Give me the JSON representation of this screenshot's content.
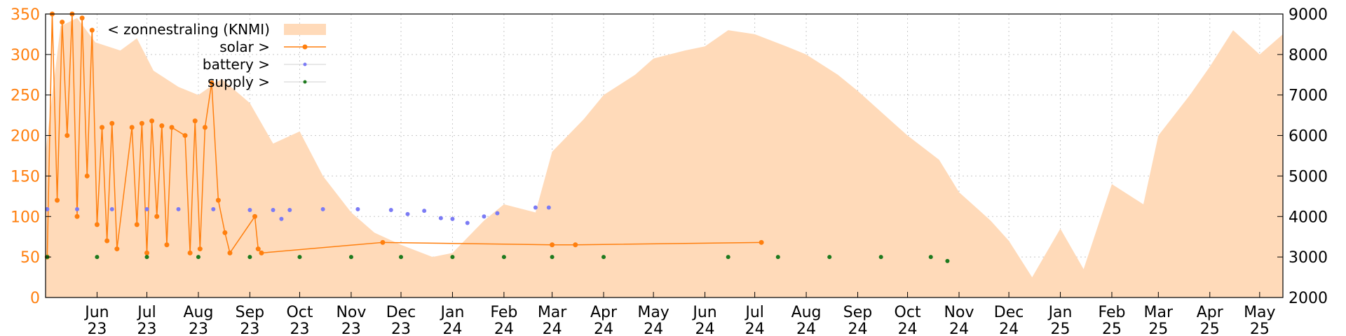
{
  "chart_data": {
    "type": "line",
    "title": "",
    "xlabel": "",
    "ylabel": "",
    "y_left": {
      "range": [
        0,
        350
      ],
      "ticks": [
        0,
        50,
        100,
        150,
        200,
        250,
        300,
        350
      ],
      "color": "#ff7f0e"
    },
    "y_right": {
      "range": [
        2000,
        9000
      ],
      "ticks": [
        2000,
        3000,
        4000,
        5000,
        6000,
        7000,
        8000,
        9000
      ],
      "color": "#000000"
    },
    "x_range": [
      "2023-05-01",
      "2025-05-15"
    ],
    "x_ticks": [
      {
        "label": [
          "Jun",
          "23"
        ],
        "date": "2023-06-01"
      },
      {
        "label": [
          "Jul",
          "23"
        ],
        "date": "2023-07-01"
      },
      {
        "label": [
          "Aug",
          "23"
        ],
        "date": "2023-08-01"
      },
      {
        "label": [
          "Sep",
          "23"
        ],
        "date": "2023-09-01"
      },
      {
        "label": [
          "Oct",
          "23"
        ],
        "date": "2023-10-01"
      },
      {
        "label": [
          "Nov",
          "23"
        ],
        "date": "2023-11-01"
      },
      {
        "label": [
          "Dec",
          "23"
        ],
        "date": "2023-12-01"
      },
      {
        "label": [
          "Jan",
          "24"
        ],
        "date": "2024-01-01"
      },
      {
        "label": [
          "Feb",
          "24"
        ],
        "date": "2024-02-01"
      },
      {
        "label": [
          "Mar",
          "24"
        ],
        "date": "2024-03-01"
      },
      {
        "label": [
          "Apr",
          "24"
        ],
        "date": "2024-04-01"
      },
      {
        "label": [
          "May",
          "24"
        ],
        "date": "2024-05-01"
      },
      {
        "label": [
          "Jun",
          "24"
        ],
        "date": "2024-06-01"
      },
      {
        "label": [
          "Jul",
          "24"
        ],
        "date": "2024-07-01"
      },
      {
        "label": [
          "Aug",
          "24"
        ],
        "date": "2024-08-01"
      },
      {
        "label": [
          "Sep",
          "24"
        ],
        "date": "2024-09-01"
      },
      {
        "label": [
          "Oct",
          "24"
        ],
        "date": "2024-10-01"
      },
      {
        "label": [
          "Nov",
          "24"
        ],
        "date": "2024-11-01"
      },
      {
        "label": [
          "Dec",
          "24"
        ],
        "date": "2024-12-01"
      },
      {
        "label": [
          "Jan",
          "25"
        ],
        "date": "2025-01-01"
      },
      {
        "label": [
          "Feb",
          "25"
        ],
        "date": "2025-02-01"
      },
      {
        "label": [
          "Mar",
          "25"
        ],
        "date": "2025-03-01"
      },
      {
        "label": [
          "Apr",
          "25"
        ],
        "date": "2025-04-01"
      },
      {
        "label": [
          "May",
          "25"
        ],
        "date": "2025-05-01"
      }
    ],
    "grid": true,
    "legend": {
      "placement": "top-left"
    },
    "series": [
      {
        "name": "< zonnestraling (KNMI)",
        "axis": "right",
        "style": "area",
        "color": "#ffdab9",
        "points": [
          [
            "2023-05-01",
            5600
          ],
          [
            "2023-05-10",
            8700
          ],
          [
            "2023-05-20",
            8900
          ],
          [
            "2023-05-31",
            8300
          ],
          [
            "2023-06-15",
            8100
          ],
          [
            "2023-06-25",
            8400
          ],
          [
            "2023-07-05",
            7600
          ],
          [
            "2023-07-20",
            7200
          ],
          [
            "2023-08-01",
            7000
          ],
          [
            "2023-08-15",
            7400
          ],
          [
            "2023-09-01",
            6800
          ],
          [
            "2023-09-15",
            5800
          ],
          [
            "2023-10-01",
            6100
          ],
          [
            "2023-10-15",
            5000
          ],
          [
            "2023-11-01",
            4100
          ],
          [
            "2023-11-15",
            3600
          ],
          [
            "2023-12-01",
            3300
          ],
          [
            "2023-12-20",
            3000
          ],
          [
            "2024-01-01",
            3100
          ],
          [
            "2024-01-20",
            3900
          ],
          [
            "2024-02-01",
            4300
          ],
          [
            "2024-02-20",
            4100
          ],
          [
            "2024-03-01",
            5600
          ],
          [
            "2024-03-20",
            6400
          ],
          [
            "2024-04-01",
            7000
          ],
          [
            "2024-04-20",
            7500
          ],
          [
            "2024-05-01",
            7900
          ],
          [
            "2024-05-20",
            8100
          ],
          [
            "2024-06-01",
            8200
          ],
          [
            "2024-06-15",
            8600
          ],
          [
            "2024-07-01",
            8500
          ],
          [
            "2024-07-20",
            8200
          ],
          [
            "2024-08-01",
            8000
          ],
          [
            "2024-08-20",
            7500
          ],
          [
            "2024-09-01",
            7100
          ],
          [
            "2024-09-20",
            6400
          ],
          [
            "2024-10-01",
            6000
          ],
          [
            "2024-10-20",
            5400
          ],
          [
            "2024-11-01",
            4600
          ],
          [
            "2024-11-20",
            3900
          ],
          [
            "2024-12-01",
            3400
          ],
          [
            "2024-12-15",
            2500
          ],
          [
            "2025-01-01",
            3700
          ],
          [
            "2025-01-15",
            2700
          ],
          [
            "2025-02-01",
            4800
          ],
          [
            "2025-02-20",
            4300
          ],
          [
            "2025-03-01",
            6000
          ],
          [
            "2025-03-20",
            7000
          ],
          [
            "2025-04-01",
            7700
          ],
          [
            "2025-04-15",
            8600
          ],
          [
            "2025-05-01",
            8000
          ],
          [
            "2025-05-15",
            8500
          ]
        ]
      },
      {
        "name": "solar >",
        "axis": "left",
        "style": "linespoints",
        "color": "#ff7f0e",
        "points": [
          [
            "2023-05-02",
            50
          ],
          [
            "2023-05-05",
            350
          ],
          [
            "2023-05-08",
            120
          ],
          [
            "2023-05-11",
            340
          ],
          [
            "2023-05-14",
            200
          ],
          [
            "2023-05-17",
            350
          ],
          [
            "2023-05-20",
            100
          ],
          [
            "2023-05-23",
            345
          ],
          [
            "2023-05-26",
            150
          ],
          [
            "2023-05-29",
            330
          ],
          [
            "2023-06-01",
            90
          ],
          [
            "2023-06-04",
            210
          ],
          [
            "2023-06-07",
            70
          ],
          [
            "2023-06-10",
            215
          ],
          [
            "2023-06-13",
            60
          ],
          [
            "2023-06-22",
            210
          ],
          [
            "2023-06-25",
            90
          ],
          [
            "2023-06-28",
            215
          ],
          [
            "2023-07-01",
            55
          ],
          [
            "2023-07-04",
            218
          ],
          [
            "2023-07-07",
            100
          ],
          [
            "2023-07-10",
            212
          ],
          [
            "2023-07-13",
            65
          ],
          [
            "2023-07-16",
            210
          ],
          [
            "2023-07-24",
            200
          ],
          [
            "2023-07-27",
            55
          ],
          [
            "2023-07-30",
            218
          ],
          [
            "2023-08-02",
            60
          ],
          [
            "2023-08-05",
            210
          ],
          [
            "2023-08-09",
            265
          ],
          [
            "2023-08-13",
            120
          ],
          [
            "2023-08-17",
            80
          ],
          [
            "2023-08-20",
            55
          ],
          [
            "2023-09-04",
            100
          ],
          [
            "2023-09-06",
            60
          ],
          [
            "2023-09-08",
            55
          ],
          [
            "2023-11-20",
            68
          ],
          [
            "2024-03-01",
            65
          ],
          [
            "2024-03-15",
            65
          ],
          [
            "2024-07-05",
            68
          ]
        ]
      },
      {
        "name": "battery >",
        "axis": "left",
        "style": "points",
        "color": "#7b7bf5",
        "points": [
          [
            "2023-05-02",
            109
          ],
          [
            "2023-05-20",
            109
          ],
          [
            "2023-06-10",
            109
          ],
          [
            "2023-07-01",
            109
          ],
          [
            "2023-07-20",
            109
          ],
          [
            "2023-08-10",
            109
          ],
          [
            "2023-09-01",
            108
          ],
          [
            "2023-09-15",
            108
          ],
          [
            "2023-09-20",
            97
          ],
          [
            "2023-09-25",
            108
          ],
          [
            "2023-10-15",
            109
          ],
          [
            "2023-11-05",
            109
          ],
          [
            "2023-11-25",
            108
          ],
          [
            "2023-12-05",
            103
          ],
          [
            "2023-12-15",
            107
          ],
          [
            "2023-12-25",
            98
          ],
          [
            "2024-01-01",
            97
          ],
          [
            "2024-01-10",
            92
          ],
          [
            "2024-01-20",
            100
          ],
          [
            "2024-01-28",
            104
          ],
          [
            "2024-02-20",
            111
          ],
          [
            "2024-02-28",
            111
          ]
        ]
      },
      {
        "name": "supply >",
        "axis": "left",
        "style": "points",
        "color": "#1e7a1e",
        "points": [
          [
            "2023-05-02",
            50
          ],
          [
            "2023-06-01",
            50
          ],
          [
            "2023-07-01",
            50
          ],
          [
            "2023-08-01",
            50
          ],
          [
            "2023-09-01",
            50
          ],
          [
            "2023-10-01",
            50
          ],
          [
            "2023-11-01",
            50
          ],
          [
            "2023-12-01",
            50
          ],
          [
            "2024-01-01",
            50
          ],
          [
            "2024-02-01",
            50
          ],
          [
            "2024-03-01",
            50
          ],
          [
            "2024-04-01",
            50
          ],
          [
            "2024-06-15",
            50
          ],
          [
            "2024-07-15",
            50
          ],
          [
            "2024-08-15",
            50
          ],
          [
            "2024-09-15",
            50
          ],
          [
            "2024-10-15",
            50
          ],
          [
            "2024-10-25",
            45
          ]
        ]
      }
    ]
  }
}
